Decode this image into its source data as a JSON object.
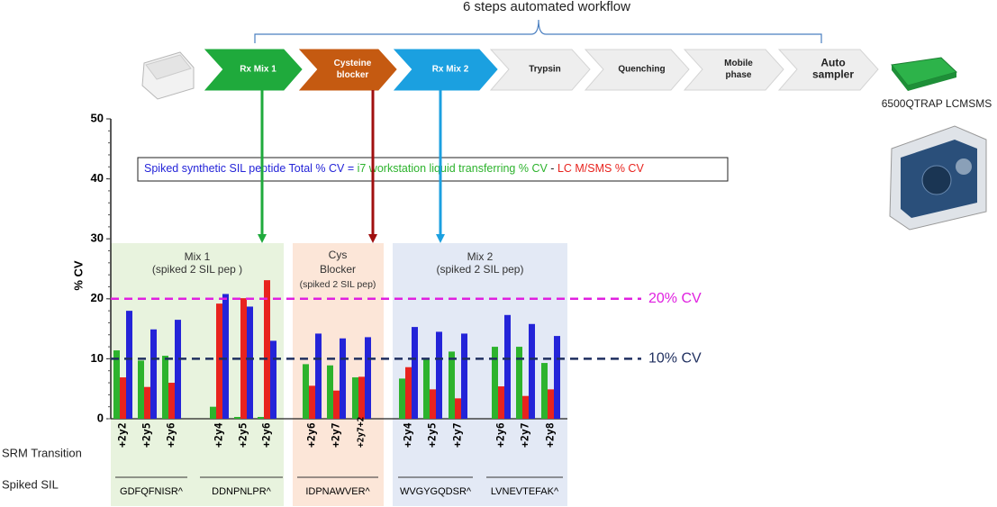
{
  "workflow": {
    "title": "6 steps automated workflow",
    "steps": [
      [
        "Rx Mix 1"
      ],
      [
        "Cysteine",
        "blocker"
      ],
      [
        "Rx Mix 2"
      ],
      [
        "Trypsin"
      ],
      [
        "Quenching"
      ],
      [
        "Mobile",
        "phase"
      ],
      [
        "Auto",
        "sampler"
      ]
    ],
    "instrument": "6500QTRAP LCMSMS"
  },
  "formula_operators": [
    "=",
    "-"
  ],
  "row_labels": [
    "SRM Transition",
    "Spiked SIL"
  ],
  "panels": [
    {
      "lines": [
        "Mix 1",
        "(spiked  2 SIL pep )"
      ]
    },
    {
      "lines": [
        "Cys",
        "Blocker",
        "(spiked 2 SIL pep)"
      ]
    },
    {
      "lines": [
        "Mix 2",
        "(spiked  2 SIL pep)"
      ]
    }
  ],
  "peptides": [
    "GDFQFNISR^",
    "DDNPNLPR^",
    "IDPNAWVER^",
    "WVGYGQDSR^",
    "LVNEVTEFAK^"
  ],
  "chart_data": {
    "type": "bar",
    "y_label": "% CV",
    "categories": [
      "+2y2",
      "+2y5",
      "+2y6",
      "+2y4",
      "+2y5",
      "+2y6",
      "+2y6",
      "+2y7",
      "+2y7+2",
      "+2y4",
      "+2y5",
      "+2y7",
      "+2y6",
      "+2y7",
      "+2y8"
    ],
    "series": [
      {
        "name": "i7 workstation liquid transferring % CV",
        "color": "#2db32d",
        "values": [
          11.4,
          9.7,
          10.5,
          2,
          0.3,
          0.3,
          9.1,
          8.9,
          6.9,
          6.7,
          10,
          11.2,
          12,
          12,
          9.3
        ]
      },
      {
        "name": "LC M/SMS % CV",
        "color": "#e8231e",
        "values": [
          6.9,
          5.3,
          6,
          19.2,
          20.1,
          23.1,
          5.5,
          4.7,
          7,
          8.6,
          4.9,
          3.4,
          5.4,
          3.8,
          4.9
        ]
      },
      {
        "name": "Spiked synthetic SIL peptide Total % CV",
        "color": "#2424d8",
        "values": [
          18,
          14.9,
          16.5,
          20.8,
          18.7,
          13,
          14.2,
          13.4,
          13.6,
          15.3,
          14.5,
          14.2,
          17.3,
          15.8,
          13.8
        ]
      }
    ],
    "ylim": [
      0,
      50
    ],
    "yticks": [
      0,
      10,
      20,
      30,
      40,
      50
    ],
    "reference_lines": [
      {
        "value": 20,
        "label": "20% CV",
        "color": "#e020e0"
      },
      {
        "value": 10,
        "label": "10% CV",
        "color": "#1f2f5f"
      }
    ]
  }
}
